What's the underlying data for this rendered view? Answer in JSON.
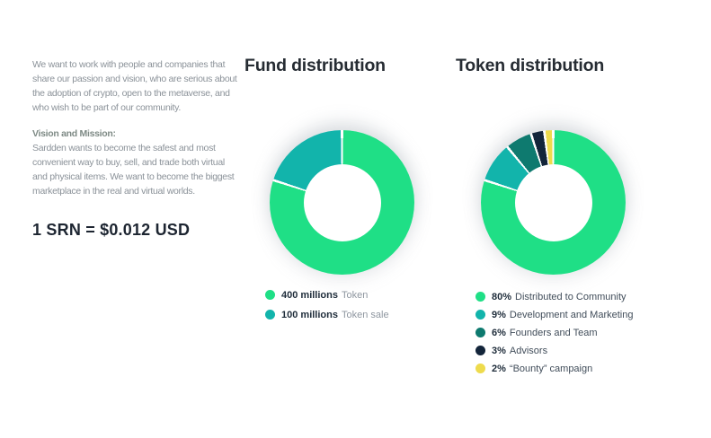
{
  "intro": {
    "paragraph1": "We want to work with people and companies that\nshare our passion and vision, who are serious about\nthe adoption of crypto, open to the metaverse, and\nwho wish to be part of our community.",
    "mission_heading": "Vision and Mission:",
    "mission_body": "Sardden wants to become the safest and most\nconvenient way to buy, sell, and trade both virtual\nand physical items. We want to become the biggest\nmarketplace in the real and virtual worlds.",
    "price_line": "1 SRN = $0.012 USD"
  },
  "colors": {
    "green": "#1fdf86",
    "teal": "#12b4ab",
    "dark_teal": "#0e7a6f",
    "navy": "#13253a",
    "yellow": "#eedb4d"
  },
  "chart_data": [
    {
      "type": "pie",
      "donut": true,
      "title": "Fund distribution",
      "start_angle_deg": 0,
      "direction": "clockwise",
      "legend_position": "bottom-left",
      "slices": [
        {
          "value_label": "400 millions",
          "label": "Token",
          "value": 400,
          "percent": 80,
          "color": "#1fdf86"
        },
        {
          "value_label": "100 millions",
          "label": "Token sale",
          "value": 100,
          "percent": 20,
          "color": "#12b4ab"
        }
      ]
    },
    {
      "type": "pie",
      "donut": true,
      "title": "Token distribution",
      "start_angle_deg": 0,
      "direction": "clockwise",
      "legend_position": "bottom-left",
      "slices": [
        {
          "value_label": "80%",
          "label": "Distributed to Community",
          "percent": 80,
          "color": "#1fdf86"
        },
        {
          "value_label": "9%",
          "label": "Development and Marketing",
          "percent": 9,
          "color": "#12b4ab"
        },
        {
          "value_label": "6%",
          "label": "Founders and Team",
          "percent": 6,
          "color": "#0e7a6f"
        },
        {
          "value_label": "3%",
          "label": "Advisors",
          "percent": 3,
          "color": "#13253a"
        },
        {
          "value_label": "2%",
          "label": "“Bounty”  campaign",
          "percent": 2,
          "color": "#eedb4d"
        }
      ]
    }
  ]
}
